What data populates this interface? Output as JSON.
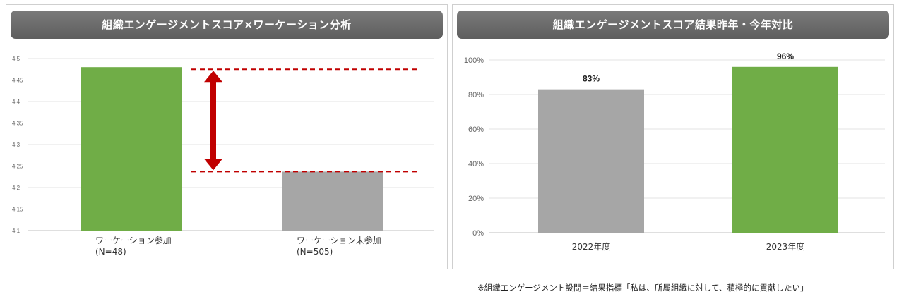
{
  "chart_data": [
    {
      "type": "bar",
      "title": "組織エンゲージメントスコア×ワーケーション分析",
      "categories": [
        "ワーケーション参加\n(N=48)",
        "ワーケーション未参加\n(N=505)"
      ],
      "values": [
        4.48,
        4.237
      ],
      "ylim": [
        4.1,
        4.5
      ],
      "yticks": [
        "4.1",
        "4.15",
        "4.2",
        "4.25",
        "4.3",
        "4.35",
        "4.4",
        "4.45",
        "4.5"
      ],
      "colors": [
        "#70ad47",
        "#a6a6a6"
      ],
      "grid": true,
      "annotation": "difference arrow between bar tops"
    },
    {
      "type": "bar",
      "title": "組織エンゲージメントスコア結果昨年・今年対比",
      "categories": [
        "2022年度",
        "2023年度"
      ],
      "values": [
        83,
        96
      ],
      "data_labels": [
        "83%",
        "96%"
      ],
      "ylim": [
        0,
        100
      ],
      "yticks": [
        "0%",
        "20%",
        "40%",
        "60%",
        "80%",
        "100%"
      ],
      "colors": [
        "#a6a6a6",
        "#70ad47"
      ],
      "grid": true
    }
  ],
  "footnote": "※組織エンゲージメント設問＝結果指標「私は、所属組織に対して、積極的に貢献したい」"
}
